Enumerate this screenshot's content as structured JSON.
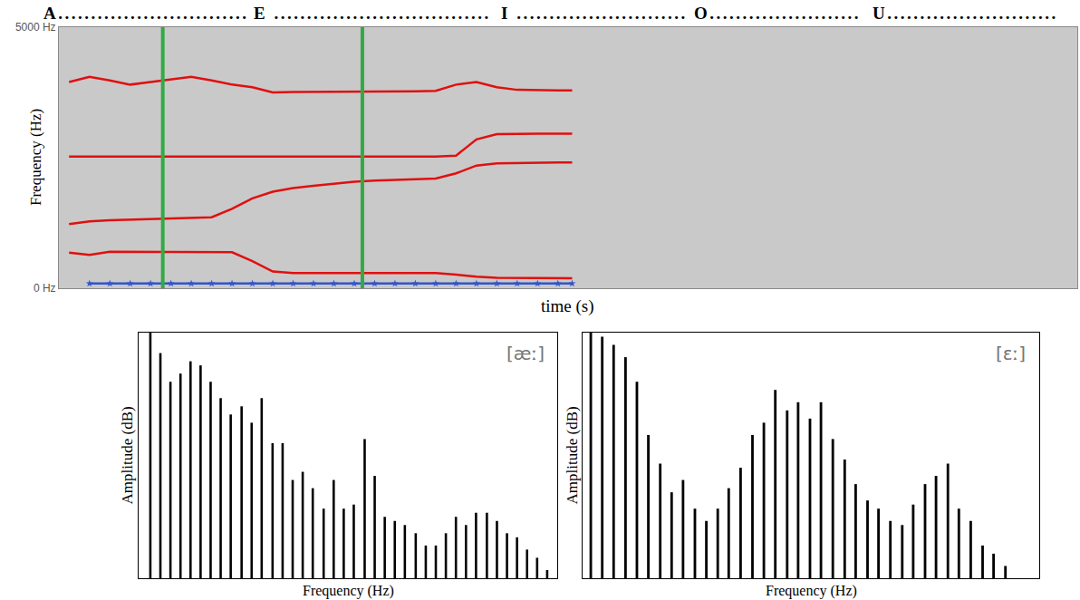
{
  "header": [
    "A.............................",
    "E .................................",
    "I ..........................",
    "O.......................",
    "U.........................."
  ],
  "chart_data": [
    {
      "type": "line",
      "x_label": "time (s)",
      "y_label": "Frequency (Hz)",
      "xlim": [
        0,
        5
      ],
      "ylim": [
        0,
        5000
      ],
      "yticks": [
        {
          "value": 0,
          "label": "0 Hz"
        },
        {
          "value": 5000,
          "label": "5000 Hz"
        }
      ],
      "tick_labels": "y",
      "grid": false,
      "x": [
        0.05,
        0.15,
        0.25,
        0.35,
        0.45,
        0.55,
        0.65,
        0.75,
        0.85,
        0.95,
        1.05,
        1.15,
        1.25,
        1.35,
        1.45,
        1.55,
        1.65,
        1.75,
        1.85,
        1.95,
        2.05,
        2.15,
        2.25,
        2.35,
        2.45,
        2.52
      ],
      "series": [
        {
          "color": "#e01010",
          "values": [
            680,
            640,
            700,
            700,
            700,
            700,
            700,
            700,
            690,
            520,
            320,
            290,
            290,
            295,
            300,
            300,
            300,
            300,
            290,
            260,
            220,
            200,
            195,
            190,
            190,
            190
          ]
        },
        {
          "color": "#e01010",
          "values": [
            1230,
            1280,
            1300,
            1310,
            1320,
            1330,
            1340,
            1360,
            1520,
            1720,
            1850,
            1920,
            1960,
            2000,
            2040,
            2060,
            2070,
            2080,
            2100,
            2200,
            2350,
            2390,
            2400,
            2400,
            2410,
            2410
          ]
        },
        {
          "color": "#e01010",
          "values": [
            2520,
            2520,
            2520,
            2520,
            2520,
            2520,
            2520,
            2520,
            2520,
            2520,
            2520,
            2520,
            2520,
            2520,
            2520,
            2520,
            2520,
            2520,
            2520,
            2540,
            2850,
            2950,
            2960,
            2960,
            2960,
            2960
          ]
        },
        {
          "color": "#e01010",
          "values": [
            3950,
            4050,
            3980,
            3900,
            3950,
            4000,
            4050,
            3980,
            3900,
            3850,
            3750,
            3760,
            3760,
            3760,
            3760,
            3760,
            3760,
            3770,
            3780,
            3900,
            3950,
            3850,
            3800,
            3790,
            3790,
            3790
          ]
        },
        {
          "color": "#3355cc",
          "marker": "star",
          "values": [
            null,
            90,
            90,
            90,
            90,
            90,
            90,
            90,
            90,
            90,
            90,
            90,
            90,
            90,
            90,
            90,
            90,
            90,
            90,
            90,
            90,
            90,
            90,
            90,
            90,
            90
          ]
        }
      ],
      "vlines": {
        "x": [
          0.51,
          1.49
        ],
        "color": "#33aa44"
      }
    },
    {
      "type": "bar",
      "annotations": [
        "[æː]"
      ],
      "x_label": "Frequency (Hz)",
      "y_label": "Amplitude (dB)",
      "xlim": [
        0,
        5000
      ],
      "ylim": [
        0,
        60
      ],
      "tick_labels": false,
      "grid": false,
      "x": [
        140,
        260,
        380,
        500,
        620,
        740,
        860,
        980,
        1100,
        1230,
        1350,
        1470,
        1600,
        1720,
        1840,
        1960,
        2080,
        2210,
        2330,
        2450,
        2570,
        2700,
        2820,
        2940,
        3060,
        3180,
        3310,
        3430,
        3550,
        3670,
        3790,
        3910,
        4030,
        4160,
        4280,
        4400,
        4520,
        4640,
        4760,
        4880
      ],
      "values": [
        60,
        55,
        48,
        50,
        53,
        52,
        48,
        44,
        40,
        42,
        38,
        44,
        33,
        33,
        24,
        26,
        22,
        17,
        24,
        17,
        18,
        34,
        25,
        15,
        14,
        13,
        11,
        8,
        8,
        11,
        15,
        13,
        16,
        16,
        14,
        11,
        10,
        7,
        5,
        2
      ],
      "color": "#000000"
    },
    {
      "type": "bar",
      "annotations": [
        "[ɛː]"
      ],
      "x_label": "Frequency (Hz)",
      "y_label": "Amplitude (dB)",
      "xlim": [
        0,
        5000
      ],
      "ylim": [
        0,
        60
      ],
      "tick_labels": false,
      "grid": false,
      "x": [
        90,
        215,
        340,
        470,
        595,
        720,
        850,
        975,
        1100,
        1230,
        1355,
        1480,
        1600,
        1730,
        1860,
        1985,
        2110,
        2240,
        2360,
        2490,
        2610,
        2740,
        2870,
        2990,
        3120,
        3240,
        3370,
        3500,
        3620,
        3750,
        3870,
        4000,
        4120,
        4250,
        4380,
        4500,
        4630
      ],
      "values": [
        60,
        59,
        57,
        54,
        48,
        35,
        28,
        21,
        24,
        17,
        14,
        17,
        22,
        27,
        35,
        38,
        46,
        41,
        43,
        39,
        43,
        34,
        29,
        23,
        19,
        17,
        14,
        13,
        18,
        23,
        25,
        28,
        17,
        14,
        8,
        6,
        3
      ],
      "color": "#000000"
    }
  ]
}
